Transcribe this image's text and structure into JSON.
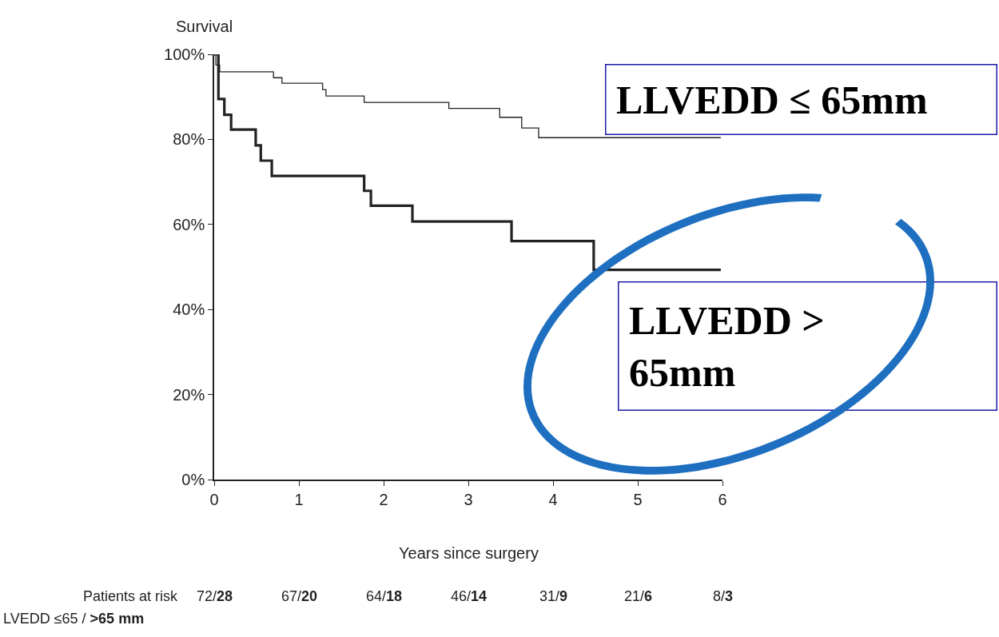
{
  "chart_data": {
    "type": "step",
    "ylabel": "Survival",
    "xlabel": "Years since surgery",
    "series": [
      {
        "name": "LLVEDD ≤ 65mm",
        "color": "#222222",
        "x": [
          0,
          0.02,
          0.065,
          0.7,
          0.8,
          1.28,
          1.32,
          1.77,
          2.77,
          3.37,
          3.63,
          3.83,
          5.98
        ],
        "values": [
          100,
          97.5,
          95.9,
          94.5,
          93.2,
          91.7,
          90.2,
          88.7,
          87.3,
          85.2,
          82.7,
          80.4,
          80.4
        ]
      },
      {
        "name": "LLVEDD > 65mm",
        "color": "#222222",
        "x": [
          0,
          0.05,
          0.12,
          0.2,
          0.49,
          0.55,
          0.68,
          1.77,
          1.85,
          2.34,
          3.51,
          4.48,
          5.98
        ],
        "values": [
          100,
          89.5,
          85.8,
          82.3,
          78.6,
          75.0,
          71.4,
          67.9,
          64.4,
          60.7,
          56.1,
          49.3,
          49.3
        ]
      }
    ],
    "xlim": [
      0,
      6
    ],
    "xticks": [
      0,
      1,
      2,
      3,
      4,
      5,
      6
    ],
    "ylim": [
      0,
      100
    ],
    "yticks": [
      {
        "value": 0,
        "label": "0%"
      },
      {
        "value": 20,
        "label": "20%"
      },
      {
        "value": 40,
        "label": "40%"
      },
      {
        "value": 60,
        "label": "60%"
      },
      {
        "value": 80,
        "label": "80%"
      },
      {
        "value": 100,
        "label": "100%"
      }
    ],
    "annotations": [
      "Patients at risk",
      "72/28",
      "67/20",
      "64/18",
      "46/14",
      "31/9",
      "21/6",
      "8/3",
      "LVEDD ≤65 / >65 mm"
    ],
    "legend": false,
    "marker": "none",
    "line_style": "solid"
  }
}
